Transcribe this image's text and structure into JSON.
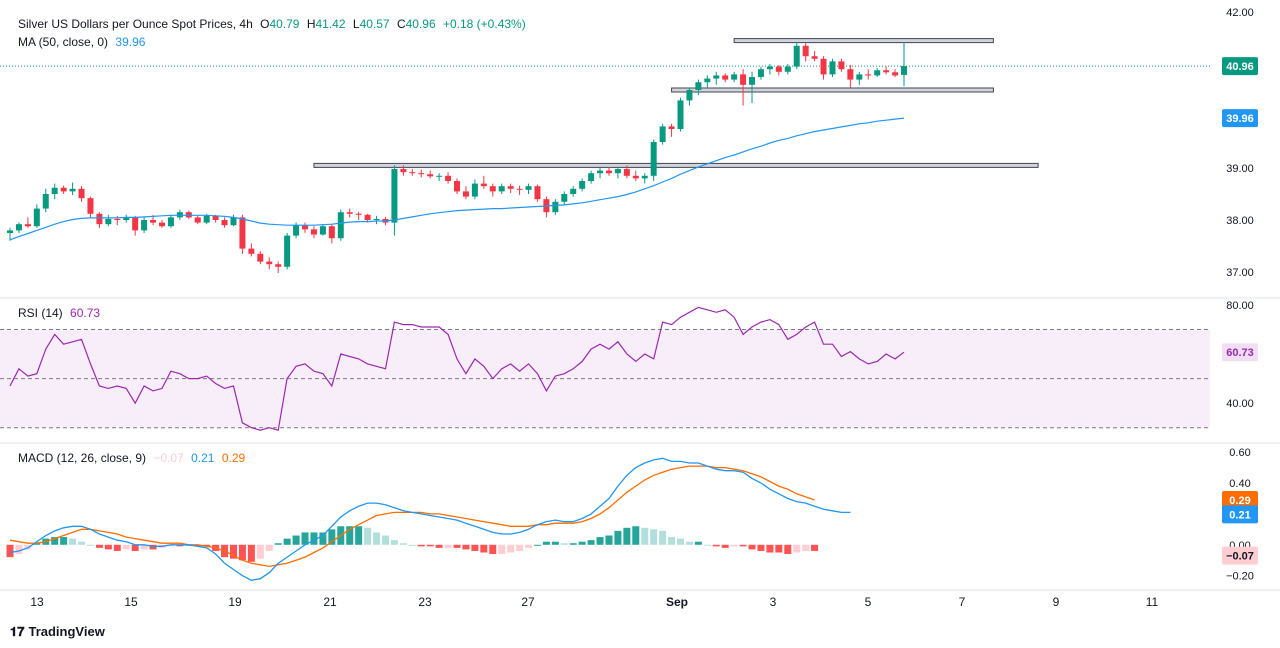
{
  "legend": {
    "title": "Silver US Dollars per Ounce Spot Prices, 4h",
    "o_label": "O",
    "o": "40.79",
    "h_label": "H",
    "h": "41.42",
    "l_label": "L",
    "l": "40.57",
    "c_label": "C",
    "c": "40.96",
    "change": "+0.18 (+0.43%)",
    "ma_label": "MA (50, close, 0)",
    "ma_value": "39.96",
    "rsi_label": "RSI (14)",
    "rsi_value": "60.73",
    "macd_label": "MACD (12, 26, close, 9)",
    "macd_hist_value": "−0.07",
    "macd_value": "0.21",
    "macd_signal_value": "0.29"
  },
  "branding": {
    "logo_text": "TradingView"
  },
  "colors": {
    "up": "#089981",
    "down": "#f23645",
    "ma": "#2196f3",
    "rsi": "#9c27b0",
    "macd": "#2196f3",
    "signal": "#ff6d00",
    "hist_up_strong": "#26a69a",
    "hist_up_weak": "#b2dfdb",
    "hist_down_strong": "#ff5252",
    "hist_down_weak": "#ffcdd2"
  },
  "chart_data": [
    {
      "type": "candlestick",
      "title": "Silver US Dollars per Ounce Spot Prices, 4h",
      "x_ticks": [
        "13",
        "15",
        "19",
        "21",
        "23",
        "27",
        "Sep",
        "3",
        "5",
        "7",
        "9",
        "11"
      ],
      "y_ticks": [
        "42.00",
        "40.96",
        "39.96",
        "39.00",
        "38.00",
        "37.00"
      ],
      "ylim": [
        36.5,
        42.0
      ],
      "last_price": 40.96,
      "ma50_last": 39.96,
      "ohlc": [
        [
          37.75,
          37.85,
          37.6,
          37.8
        ],
        [
          37.8,
          37.95,
          37.75,
          37.92
        ],
        [
          37.92,
          38.05,
          37.85,
          37.88
        ],
        [
          37.88,
          38.3,
          37.85,
          38.22
        ],
        [
          38.22,
          38.6,
          38.15,
          38.5
        ],
        [
          38.5,
          38.7,
          38.4,
          38.62
        ],
        [
          38.62,
          38.66,
          38.5,
          38.55
        ],
        [
          38.55,
          38.72,
          38.48,
          38.6
        ],
        [
          38.6,
          38.65,
          38.35,
          38.42
        ],
        [
          38.42,
          38.45,
          38.05,
          38.12
        ],
        [
          38.12,
          38.15,
          37.85,
          37.92
        ],
        [
          37.92,
          38.1,
          37.88,
          38.02
        ],
        [
          38.02,
          38.08,
          37.9,
          38.0
        ],
        [
          38.0,
          38.1,
          37.95,
          38.05
        ],
        [
          38.05,
          38.08,
          37.7,
          37.8
        ],
        [
          37.8,
          38.05,
          37.75,
          38.0
        ],
        [
          38.0,
          38.1,
          37.9,
          37.95
        ],
        [
          37.95,
          38.0,
          37.85,
          37.88
        ],
        [
          37.88,
          38.1,
          37.85,
          38.05
        ],
        [
          38.05,
          38.2,
          38.0,
          38.15
        ],
        [
          38.15,
          38.18,
          38.02,
          38.05
        ],
        [
          38.05,
          38.08,
          37.92,
          37.95
        ],
        [
          37.95,
          38.12,
          37.92,
          38.08
        ],
        [
          38.08,
          38.1,
          37.95,
          38.0
        ],
        [
          38.0,
          38.05,
          37.85,
          37.9
        ],
        [
          37.9,
          38.1,
          37.88,
          38.05
        ],
        [
          38.05,
          38.1,
          37.35,
          37.45
        ],
        [
          37.45,
          37.55,
          37.3,
          37.35
        ],
        [
          37.35,
          37.4,
          37.15,
          37.2
        ],
        [
          37.2,
          37.28,
          37.05,
          37.15
        ],
        [
          37.15,
          37.2,
          36.98,
          37.1
        ],
        [
          37.1,
          37.75,
          37.05,
          37.7
        ],
        [
          37.7,
          37.95,
          37.65,
          37.9
        ],
        [
          37.9,
          37.95,
          37.75,
          37.82
        ],
        [
          37.82,
          37.88,
          37.65,
          37.72
        ],
        [
          37.72,
          37.92,
          37.7,
          37.88
        ],
        [
          37.88,
          37.92,
          37.55,
          37.65
        ],
        [
          37.65,
          38.2,
          37.6,
          38.15
        ],
        [
          38.15,
          38.22,
          38.05,
          38.12
        ],
        [
          38.12,
          38.16,
          38.0,
          38.1
        ],
        [
          38.1,
          38.12,
          37.95,
          38.0
        ],
        [
          38.0,
          38.08,
          37.92,
          38.02
        ],
        [
          38.02,
          38.06,
          37.9,
          37.95
        ],
        [
          37.95,
          39.05,
          37.7,
          38.98
        ],
        [
          38.98,
          39.05,
          38.85,
          38.92
        ],
        [
          38.92,
          38.98,
          38.85,
          38.9
        ],
        [
          38.9,
          38.97,
          38.82,
          38.88
        ],
        [
          38.88,
          38.95,
          38.8,
          38.84
        ],
        [
          38.84,
          38.9,
          38.75,
          38.85
        ],
        [
          38.85,
          38.92,
          38.7,
          38.75
        ],
        [
          38.75,
          38.8,
          38.5,
          38.55
        ],
        [
          38.55,
          38.65,
          38.4,
          38.45
        ],
        [
          38.45,
          38.78,
          38.4,
          38.7
        ],
        [
          38.7,
          38.85,
          38.6,
          38.65
        ],
        [
          38.65,
          38.7,
          38.45,
          38.55
        ],
        [
          38.55,
          38.7,
          38.5,
          38.65
        ],
        [
          38.65,
          38.7,
          38.52,
          38.6
        ],
        [
          38.6,
          38.66,
          38.48,
          38.58
        ],
        [
          38.58,
          38.7,
          38.5,
          38.65
        ],
        [
          38.65,
          38.68,
          38.35,
          38.4
        ],
        [
          38.4,
          38.45,
          38.05,
          38.15
        ],
        [
          38.15,
          38.4,
          38.1,
          38.35
        ],
        [
          38.35,
          38.55,
          38.3,
          38.5
        ],
        [
          38.5,
          38.65,
          38.45,
          38.6
        ],
        [
          38.6,
          38.8,
          38.55,
          38.75
        ],
        [
          38.75,
          38.95,
          38.7,
          38.9
        ],
        [
          38.9,
          39.0,
          38.8,
          38.95
        ],
        [
          38.95,
          39.02,
          38.85,
          38.9
        ],
        [
          38.9,
          39.02,
          38.8,
          38.98
        ],
        [
          38.98,
          39.05,
          38.8,
          38.85
        ],
        [
          38.85,
          38.95,
          38.75,
          38.8
        ],
        [
          38.8,
          38.9,
          38.7,
          38.85
        ],
        [
          38.85,
          39.55,
          38.75,
          39.5
        ],
        [
          39.5,
          39.85,
          39.45,
          39.8
        ],
        [
          39.8,
          39.85,
          39.6,
          39.75
        ],
        [
          39.75,
          40.35,
          39.7,
          40.3
        ],
        [
          40.3,
          40.55,
          40.2,
          40.5
        ],
        [
          40.5,
          40.7,
          40.4,
          40.65
        ],
        [
          40.65,
          40.78,
          40.55,
          40.72
        ],
        [
          40.72,
          40.85,
          40.6,
          40.78
        ],
        [
          40.78,
          40.82,
          40.65,
          40.7
        ],
        [
          40.7,
          40.85,
          40.65,
          40.8
        ],
        [
          40.8,
          40.9,
          40.2,
          40.6
        ],
        [
          40.6,
          40.85,
          40.25,
          40.75
        ],
        [
          40.75,
          40.95,
          40.7,
          40.9
        ],
        [
          40.9,
          41.0,
          40.8,
          40.95
        ],
        [
          40.95,
          40.98,
          40.78,
          40.85
        ],
        [
          40.85,
          41.0,
          40.8,
          40.95
        ],
        [
          40.95,
          41.42,
          40.9,
          41.35
        ],
        [
          41.35,
          41.4,
          41.05,
          41.15
        ],
        [
          41.15,
          41.25,
          41.05,
          41.1
        ],
        [
          41.1,
          41.15,
          40.7,
          40.8
        ],
        [
          40.8,
          41.1,
          40.75,
          41.05
        ],
        [
          41.05,
          41.1,
          40.85,
          40.9
        ],
        [
          40.9,
          40.98,
          40.55,
          40.7
        ],
        [
          40.7,
          40.85,
          40.6,
          40.8
        ],
        [
          40.8,
          40.9,
          40.7,
          40.78
        ],
        [
          40.78,
          40.92,
          40.75,
          40.88
        ],
        [
          40.88,
          40.95,
          40.8,
          40.84
        ],
        [
          40.84,
          40.9,
          40.75,
          40.78
        ],
        [
          40.79,
          41.42,
          40.57,
          40.96
        ]
      ],
      "ma50": [
        37.62,
        37.68,
        37.74,
        37.8,
        37.86,
        37.92,
        37.97,
        38.01,
        38.03,
        38.04,
        38.04,
        38.04,
        38.04,
        38.05,
        38.05,
        38.06,
        38.07,
        38.08,
        38.09,
        38.09,
        38.09,
        38.09,
        38.09,
        38.08,
        38.07,
        38.05,
        38.02,
        37.98,
        37.94,
        37.92,
        37.91,
        37.9,
        37.9,
        37.9,
        37.9,
        37.91,
        37.92,
        37.94,
        37.96,
        37.97,
        37.97,
        37.98,
        37.98,
        38.0,
        38.03,
        38.06,
        38.09,
        38.12,
        38.14,
        38.16,
        38.18,
        38.19,
        38.2,
        38.21,
        38.22,
        38.22,
        38.23,
        38.24,
        38.25,
        38.26,
        38.27,
        38.28,
        38.29,
        38.31,
        38.33,
        38.36,
        38.39,
        38.42,
        38.45,
        38.49,
        38.54,
        38.6,
        38.66,
        38.73,
        38.8,
        38.88,
        38.95,
        39.02,
        39.08,
        39.14,
        39.2,
        39.25,
        39.31,
        39.37,
        39.42,
        39.48,
        39.53,
        39.57,
        39.62,
        39.66,
        39.7,
        39.73,
        39.76,
        39.79,
        39.82,
        39.85,
        39.87,
        39.9,
        39.92,
        39.94,
        39.96
      ],
      "levels": [
        {
          "value": 41.45,
          "x_start_index": 81,
          "x_end_index": 110
        },
        {
          "value": 40.5,
          "x_start_index": 74,
          "x_end_index": 110
        },
        {
          "value": 39.05,
          "x_start_index": 34,
          "x_end_index": 115
        }
      ]
    },
    {
      "type": "line",
      "title": "RSI (14)",
      "y_ticks": [
        "80.00",
        "40.00"
      ],
      "ylim": [
        25,
        82
      ],
      "band": [
        30,
        70
      ],
      "midline": 50,
      "last_value": 60.73,
      "values": [
        47,
        54,
        51,
        52,
        62,
        68,
        64,
        65,
        66,
        56,
        47,
        46,
        47,
        46,
        40,
        47,
        45,
        46,
        53,
        52,
        50,
        50,
        51,
        48,
        46,
        47,
        32,
        30,
        29,
        30,
        29,
        50,
        55,
        56,
        53,
        52,
        47,
        60,
        59,
        58,
        56,
        55,
        54,
        73,
        72,
        72,
        71,
        71,
        71,
        68,
        58,
        52,
        58,
        55,
        50,
        54,
        56,
        53,
        56,
        52,
        45,
        51,
        52,
        54,
        57,
        62,
        64,
        62,
        65,
        60,
        57,
        60,
        58,
        73,
        72,
        75,
        77,
        79,
        78,
        77,
        78,
        75,
        68,
        71,
        73,
        74,
        72,
        66,
        68,
        71,
        73,
        64,
        64,
        59,
        61,
        58,
        56,
        57,
        60,
        58,
        60.73
      ]
    },
    {
      "type": "bar+line",
      "title": "MACD (12, 26, close, 9)",
      "y_ticks": [
        "0.60",
        "0.40",
        "0.29",
        "0.21",
        "0.00",
        "−0.07",
        "−0.20"
      ],
      "ylim": [
        -0.28,
        0.64
      ],
      "zero": 0,
      "macd_last": 0.21,
      "signal_last": 0.29,
      "histogram_last": -0.07,
      "macd": [
        -0.05,
        -0.04,
        -0.02,
        0.02,
        0.06,
        0.09,
        0.11,
        0.12,
        0.12,
        0.1,
        0.07,
        0.05,
        0.03,
        0.02,
        0.0,
        0.0,
        -0.01,
        -0.01,
        0.0,
        0.0,
        0.0,
        -0.01,
        -0.02,
        -0.06,
        -0.12,
        -0.16,
        -0.2,
        -0.23,
        -0.22,
        -0.18,
        -0.12,
        -0.08,
        -0.04,
        0.0,
        0.03,
        0.06,
        0.12,
        0.18,
        0.22,
        0.25,
        0.27,
        0.27,
        0.26,
        0.24,
        0.22,
        0.21,
        0.2,
        0.19,
        0.18,
        0.17,
        0.16,
        0.14,
        0.12,
        0.1,
        0.08,
        0.07,
        0.07,
        0.08,
        0.1,
        0.13,
        0.15,
        0.16,
        0.15,
        0.15,
        0.17,
        0.2,
        0.25,
        0.3,
        0.38,
        0.45,
        0.5,
        0.53,
        0.55,
        0.56,
        0.54,
        0.54,
        0.53,
        0.53,
        0.51,
        0.49,
        0.48,
        0.48,
        0.47,
        0.43,
        0.4,
        0.36,
        0.33,
        0.3,
        0.28,
        0.27,
        0.25,
        0.23,
        0.22,
        0.21,
        0.21
      ],
      "signal": [
        0.03,
        0.02,
        0.01,
        0.01,
        0.02,
        0.04,
        0.06,
        0.08,
        0.1,
        0.1,
        0.09,
        0.08,
        0.07,
        0.05,
        0.04,
        0.03,
        0.02,
        0.01,
        0.01,
        0.01,
        0.0,
        0.0,
        -0.01,
        -0.02,
        -0.04,
        -0.07,
        -0.1,
        -0.12,
        -0.13,
        -0.14,
        -0.13,
        -0.12,
        -0.1,
        -0.08,
        -0.05,
        -0.02,
        0.02,
        0.06,
        0.1,
        0.13,
        0.16,
        0.19,
        0.2,
        0.21,
        0.21,
        0.21,
        0.21,
        0.2,
        0.2,
        0.19,
        0.18,
        0.17,
        0.16,
        0.15,
        0.14,
        0.13,
        0.12,
        0.12,
        0.12,
        0.13,
        0.13,
        0.14,
        0.14,
        0.14,
        0.15,
        0.17,
        0.2,
        0.24,
        0.29,
        0.34,
        0.38,
        0.42,
        0.45,
        0.47,
        0.49,
        0.5,
        0.51,
        0.51,
        0.51,
        0.5,
        0.5,
        0.49,
        0.48,
        0.46,
        0.44,
        0.41,
        0.38,
        0.36,
        0.33,
        0.31,
        0.29
      ]
    }
  ]
}
